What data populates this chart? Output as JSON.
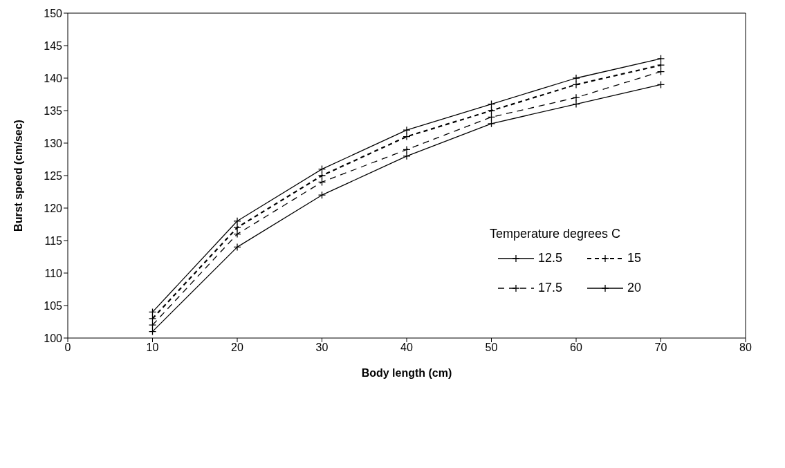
{
  "chart_data": {
    "type": "line",
    "xlabel": "Body length (cm)",
    "ylabel": "Burst speed (cm/sec)",
    "legend_title": "Temperature degrees C",
    "x": [
      10,
      20,
      30,
      40,
      50,
      60,
      70
    ],
    "series": [
      {
        "name": "12.5",
        "color": "#000000",
        "line_style": "solid",
        "values": [
          104,
          118,
          126,
          132,
          136,
          140,
          143
        ]
      },
      {
        "name": "15",
        "color": "#000000",
        "line_style": "dashed",
        "values": [
          103,
          117,
          125,
          131,
          135,
          139,
          142
        ]
      },
      {
        "name": "17.5",
        "color": "#000000",
        "line_style": "dashed",
        "values": [
          102,
          116,
          124,
          129,
          134,
          137,
          141
        ]
      },
      {
        "name": "20",
        "color": "#000000",
        "line_style": "solid",
        "values": [
          101,
          114,
          122,
          128,
          133,
          136,
          139
        ]
      }
    ],
    "xlim": [
      0,
      80
    ],
    "xticks": [
      0,
      10,
      20,
      30,
      40,
      50,
      60,
      70,
      80
    ],
    "ylim": [
      100,
      150
    ],
    "yticks": [
      100,
      105,
      110,
      115,
      120,
      125,
      130,
      135,
      140,
      145,
      150
    ],
    "legend": "right",
    "marker": "cross"
  }
}
